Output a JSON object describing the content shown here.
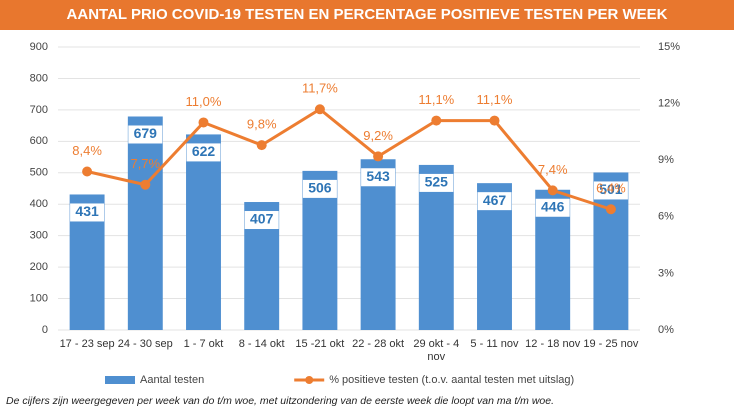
{
  "chart_data": {
    "type": "bar_line",
    "title": "AANTAL PRIO COVID-19 TESTEN EN PERCENTAGE POSITIEVE TESTEN PER WEEK",
    "categories": [
      "17 - 23 sep",
      "24 - 30 sep",
      "1 - 7 okt",
      "8 - 14 okt",
      "15 -21 okt",
      "22 - 28 okt",
      "29 okt - 4 nov",
      "5 - 11 nov",
      "12 - 18 nov",
      "19 - 25 nov"
    ],
    "series": [
      {
        "name": "Aantal testen",
        "type": "bar",
        "color": "#4f8fd0",
        "values": [
          431,
          679,
          622,
          407,
          506,
          543,
          525,
          467,
          446,
          501
        ]
      },
      {
        "name": "% positieve testen (t.o.v. aantal testen met uitslag)",
        "type": "line",
        "axis": "y2",
        "color": "#ed7d31",
        "values": [
          8.4,
          7.7,
          11.0,
          9.8,
          11.7,
          9.2,
          11.1,
          11.1,
          7.4,
          6.4
        ],
        "value_labels": [
          "8,4%",
          "7,7%",
          "11,0%",
          "9,8%",
          "11,7%",
          "9,2%",
          "11,1%",
          "11,1%",
          "7,4%",
          "6,4%"
        ]
      }
    ],
    "ylim": [
      0,
      900
    ],
    "yticks": [
      0,
      100,
      200,
      300,
      400,
      500,
      600,
      700,
      800,
      900
    ],
    "y2lim": [
      0,
      15
    ],
    "y2ticks": [
      {
        "value": 0,
        "label": "0%"
      },
      {
        "value": 3,
        "label": "3%"
      },
      {
        "value": 6,
        "label": "6%"
      },
      {
        "value": 9,
        "label": "9%"
      },
      {
        "value": 12,
        "label": "12%"
      },
      {
        "value": 15,
        "label": "15%"
      }
    ],
    "grid": true,
    "legend": "bottom",
    "footnote": "De cijfers zijn weergegeven per week van do t/m woe, met uitzondering van de eerste week die loopt van ma t/m woe."
  }
}
